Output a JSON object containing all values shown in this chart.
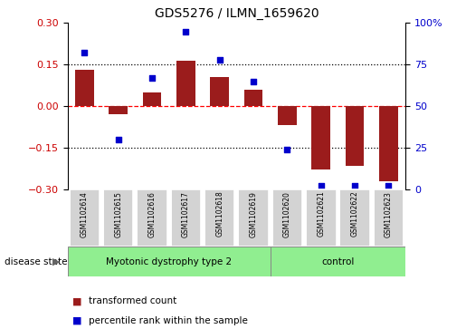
{
  "title": "GDS5276 / ILMN_1659620",
  "categories": [
    "GSM1102614",
    "GSM1102615",
    "GSM1102616",
    "GSM1102617",
    "GSM1102618",
    "GSM1102619",
    "GSM1102620",
    "GSM1102621",
    "GSM1102622",
    "GSM1102623"
  ],
  "bar_values": [
    0.13,
    -0.03,
    0.05,
    0.165,
    0.105,
    0.06,
    -0.07,
    -0.23,
    -0.215,
    -0.27
  ],
  "percentile_values": [
    82,
    30,
    67,
    95,
    78,
    65,
    24,
    2,
    2,
    2
  ],
  "bar_color": "#9B1C1C",
  "dot_color": "#0000CC",
  "ylim_left": [
    -0.3,
    0.3
  ],
  "ylim_right": [
    0,
    100
  ],
  "yticks_left": [
    -0.3,
    -0.15,
    0.0,
    0.15,
    0.3
  ],
  "yticks_right": [
    0,
    25,
    50,
    75,
    100
  ],
  "hlines": [
    -0.15,
    0.0,
    0.15
  ],
  "hline_styles": [
    "dotted",
    "dashed",
    "dotted"
  ],
  "hline_colors": [
    "black",
    "red",
    "black"
  ],
  "group1_label": "Myotonic dystrophy type 2",
  "group2_label": "control",
  "group1_count": 6,
  "disease_state_label": "disease state",
  "legend_bar_label": "transformed count",
  "legend_dot_label": "percentile rank within the sample",
  "background_color": "#ffffff",
  "plot_bg_color": "#ffffff",
  "group_bg_color": "#90EE90",
  "label_bg_color": "#d3d3d3",
  "border_color": "#000000"
}
